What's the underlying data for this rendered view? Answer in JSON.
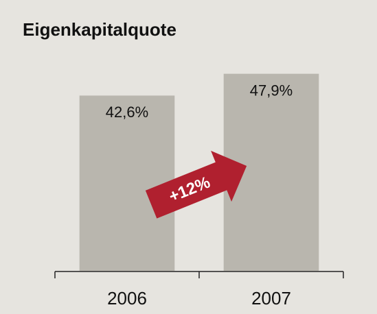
{
  "chart_data": {
    "type": "bar",
    "title": "Eigenkapitalquote",
    "categories": [
      "2006",
      "2007"
    ],
    "values": [
      42.6,
      47.9
    ],
    "value_labels": [
      "42,6%",
      "47,9%"
    ],
    "color": "#b9b6ae",
    "ylim": [
      0,
      55
    ],
    "annotation": "+12%"
  }
}
